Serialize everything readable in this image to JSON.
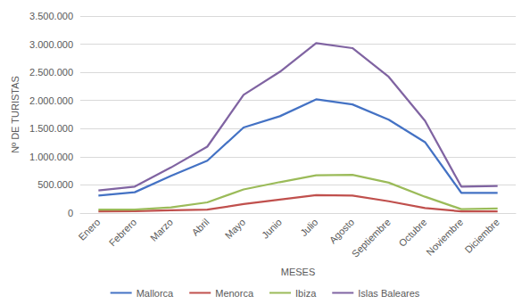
{
  "chart_data": {
    "type": "line",
    "x_label": "MESES",
    "y_label": "Nº DE TURISTAS",
    "categories": [
      "Enero",
      "Febrero",
      "Marzo",
      "Abril",
      "Mayo",
      "Junio",
      "Julio",
      "Agosto",
      "Septiembre",
      "Octubre",
      "Noviembre",
      "Diciembre"
    ],
    "series": [
      {
        "name": "Mallorca",
        "color": "#4472c4",
        "values": [
          310000,
          370000,
          660000,
          930000,
          1520000,
          1720000,
          2020000,
          1930000,
          1660000,
          1260000,
          360000,
          360000
        ]
      },
      {
        "name": "Menorca",
        "color": "#c0504d",
        "values": [
          30000,
          35000,
          50000,
          60000,
          160000,
          240000,
          320000,
          310000,
          210000,
          90000,
          30000,
          30000
        ]
      },
      {
        "name": "Ibiza",
        "color": "#9bbb59",
        "values": [
          60000,
          60000,
          100000,
          190000,
          420000,
          550000,
          670000,
          680000,
          540000,
          290000,
          70000,
          80000
        ]
      },
      {
        "name": "Islas Baleares",
        "color": "#8064a2",
        "values": [
          400000,
          470000,
          810000,
          1180000,
          2100000,
          2510000,
          3020000,
          2930000,
          2420000,
          1640000,
          470000,
          480000
        ]
      }
    ],
    "ylim": [
      0,
      3500000
    ],
    "yticks": [
      0,
      {
        "value": 500000,
        "label": "500.000"
      },
      {
        "value": 1000000,
        "label": "1.000.000"
      },
      {
        "value": 1500000,
        "label": "1.500.000"
      },
      {
        "value": 2000000,
        "label": "2.000.000"
      },
      {
        "value": 2500000,
        "label": "2.500.000"
      },
      {
        "value": 3000000,
        "label": "3.000.000"
      },
      {
        "value": 3500000,
        "label": "3.500.000"
      }
    ],
    "grid": true,
    "legend": "bottom",
    "marker": "none",
    "line_style": "solid"
  }
}
